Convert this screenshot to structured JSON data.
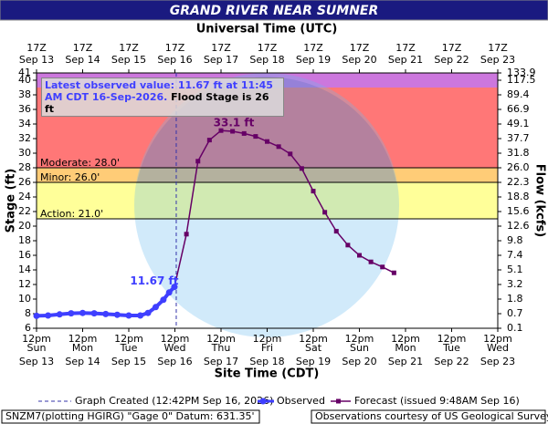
{
  "chart_data": {
    "type": "line",
    "title": "GRAND RIVER NEAR SUMNER",
    "x2_label": "Universal Time (UTC)",
    "xlabel": "Site Time (CDT)",
    "ylabel": "Stage (ft)",
    "y2label": "Flow (kcfs)",
    "xlim": [
      "Sep 13 12:00",
      "Sep 23 12:00"
    ],
    "ylim": [
      6,
      41
    ],
    "yticks": [
      41,
      40,
      38,
      36,
      34,
      32,
      30,
      28,
      26,
      24,
      22,
      20,
      18,
      16,
      14,
      12,
      10,
      8,
      6
    ],
    "flow_ticks": [
      {
        "stage": 41,
        "value": 133.9,
        "label": "133.9"
      },
      {
        "stage": 40,
        "value": 117.5,
        "label": "117.5"
      },
      {
        "stage": 38,
        "value": 89.4,
        "label": "89.4"
      },
      {
        "stage": 36,
        "value": 66.9,
        "label": "66.9"
      },
      {
        "stage": 34,
        "value": 49.1,
        "label": "49.1"
      },
      {
        "stage": 32,
        "value": 37.7,
        "label": "37.7"
      },
      {
        "stage": 30,
        "value": 31.8,
        "label": "31.8"
      },
      {
        "stage": 28,
        "value": 26,
        "label": "26.0"
      },
      {
        "stage": 26,
        "value": 22.3,
        "label": "22.3"
      },
      {
        "stage": 24,
        "value": 18.8,
        "label": "18.8"
      },
      {
        "stage": 22,
        "value": 15.6,
        "label": "15.6"
      },
      {
        "stage": 20,
        "value": 12.6,
        "label": "12.6"
      },
      {
        "stage": 18,
        "value": 9.8,
        "label": "9.8"
      },
      {
        "stage": 16,
        "value": 7.4,
        "label": "7.4"
      },
      {
        "stage": 14,
        "value": 5.1,
        "label": "5.1"
      },
      {
        "stage": 12,
        "value": 3.2,
        "label": "3.2"
      },
      {
        "stage": 10,
        "value": 1.8,
        "label": "1.8"
      },
      {
        "stage": 8,
        "value": 0.7,
        "label": "0.7"
      },
      {
        "stage": 6,
        "value": 0.1,
        "label": "0.1"
      }
    ],
    "xticks": [
      {
        "value": "Sep 13 12:00",
        "label": "12pm",
        "weekday": "Sun",
        "date": "Sep 13"
      },
      {
        "value": "Sep 14 12:00",
        "label": "12pm",
        "weekday": "Mon",
        "date": "Sep 14"
      },
      {
        "value": "Sep 15 12:00",
        "label": "12pm",
        "weekday": "Tue",
        "date": "Sep 15"
      },
      {
        "value": "Sep 16 12:00",
        "label": "12pm",
        "weekday": "Wed",
        "date": "Sep 16"
      },
      {
        "value": "Sep 17 12:00",
        "label": "12pm",
        "weekday": "Thu",
        "date": "Sep 17"
      },
      {
        "value": "Sep 18 12:00",
        "label": "12pm",
        "weekday": "Fri",
        "date": "Sep 18"
      },
      {
        "value": "Sep 19 12:00",
        "label": "12pm",
        "weekday": "Sat",
        "date": "Sep 19"
      },
      {
        "value": "Sep 20 12:00",
        "label": "12pm",
        "weekday": "Sun",
        "date": "Sep 20"
      },
      {
        "value": "Sep 21 12:00",
        "label": "12pm",
        "weekday": "Mon",
        "date": "Sep 21"
      },
      {
        "value": "Sep 22 12:00",
        "label": "12pm",
        "weekday": "Tue",
        "date": "Sep 22"
      },
      {
        "value": "Sep 23 12:00",
        "label": "12pm",
        "weekday": "Wed",
        "date": "Sep 23"
      }
    ],
    "x2ticks": [
      {
        "value": "Sep 13 12:00",
        "label": "17Z",
        "date": "Sep 13"
      },
      {
        "value": "Sep 14 12:00",
        "label": "17Z",
        "date": "Sep 14"
      },
      {
        "value": "Sep 15 12:00",
        "label": "17Z",
        "date": "Sep 15"
      },
      {
        "value": "Sep 16 12:00",
        "label": "17Z",
        "date": "Sep 16"
      },
      {
        "value": "Sep 17 12:00",
        "label": "17Z",
        "date": "Sep 17"
      },
      {
        "value": "Sep 18 12:00",
        "label": "17Z",
        "date": "Sep 18"
      },
      {
        "value": "Sep 19 12:00",
        "label": "17Z",
        "date": "Sep 19"
      },
      {
        "value": "Sep 20 12:00",
        "label": "17Z",
        "date": "Sep 20"
      },
      {
        "value": "Sep 21 12:00",
        "label": "17Z",
        "date": "Sep 21"
      },
      {
        "value": "Sep 22 12:00",
        "label": "17Z",
        "date": "Sep 22"
      },
      {
        "value": "Sep 23 12:00",
        "label": "17Z",
        "date": "Sep 23"
      }
    ],
    "bands": [
      {
        "stage": 21,
        "color": "#ffff99",
        "label": "Action: 21.0'"
      },
      {
        "stage": 26,
        "color": "#ffcc77",
        "label": "Minor: 26.0'"
      },
      {
        "stage": 28,
        "color": "#ff7777",
        "label": "Moderate: 28.0'"
      },
      {
        "stage": 39,
        "color": "#cc77dd"
      }
    ],
    "series": [
      {
        "name": "Observed",
        "color": "#3f3fff",
        "x": [
          "Sep 13 12:00",
          "Sep 13 18:00",
          "Sep 14 00:00",
          "Sep 14 06:00",
          "Sep 14 12:00",
          "Sep 14 18:00",
          "Sep 15 00:00",
          "Sep 15 06:00",
          "Sep 15 12:00",
          "Sep 15 18:00",
          "Sep 15 22:00",
          "Sep 16 02:00",
          "Sep 16 06:00",
          "Sep 16 09:00",
          "Sep 16 11:45"
        ],
        "values": [
          7.7,
          7.75,
          7.9,
          8.05,
          8.1,
          8.05,
          7.95,
          7.85,
          7.75,
          7.75,
          8.1,
          8.9,
          9.9,
          10.9,
          11.67
        ],
        "value_labels": [
          null,
          null,
          null,
          null,
          null,
          null,
          null,
          null,
          null,
          null,
          null,
          null,
          null,
          null,
          "11.67 ft"
        ]
      },
      {
        "name": "Forecast (issued 9:48AM Sep 16)",
        "color": "#660066",
        "x": [
          "Sep 16 18:00",
          "Sep 17 00:00",
          "Sep 17 06:00",
          "Sep 17 12:00",
          "Sep 17 18:00",
          "Sep 18 00:00",
          "Sep 18 06:00",
          "Sep 18 12:00",
          "Sep 18 18:00",
          "Sep 19 00:00",
          "Sep 19 06:00",
          "Sep 19 12:00",
          "Sep 19 18:00",
          "Sep 20 00:00",
          "Sep 20 06:00",
          "Sep 20 12:00",
          "Sep 20 18:00",
          "Sep 21 00:00",
          "Sep 21 06:00"
        ],
        "values": [
          18.9,
          28.9,
          31.8,
          33.1,
          33.0,
          32.7,
          32.3,
          31.6,
          30.9,
          29.9,
          27.9,
          24.8,
          21.9,
          19.3,
          17.4,
          16.0,
          15.1,
          14.4,
          13.6
        ],
        "value_labels": [
          null,
          null,
          null,
          "33.1 ft",
          null,
          null,
          null,
          null,
          null,
          null,
          null,
          null,
          null,
          null,
          null,
          null,
          null,
          null,
          null
        ]
      }
    ],
    "created": {
      "x": "Sep 16 12:42",
      "label": "Graph Created (12:42PM Sep 16, 2026)"
    },
    "info": {
      "latest": "Latest observed value: 11.67 ft at 11:45 AM CDT 16-Sep-2026.",
      "flood_stage": "Flood Stage is 26 ft"
    },
    "footer": [
      "SNZM7(plotting HGIRG) \"Gage 0\" Datum: 631.35'",
      "Observations courtesy of US Geological Survey"
    ]
  }
}
